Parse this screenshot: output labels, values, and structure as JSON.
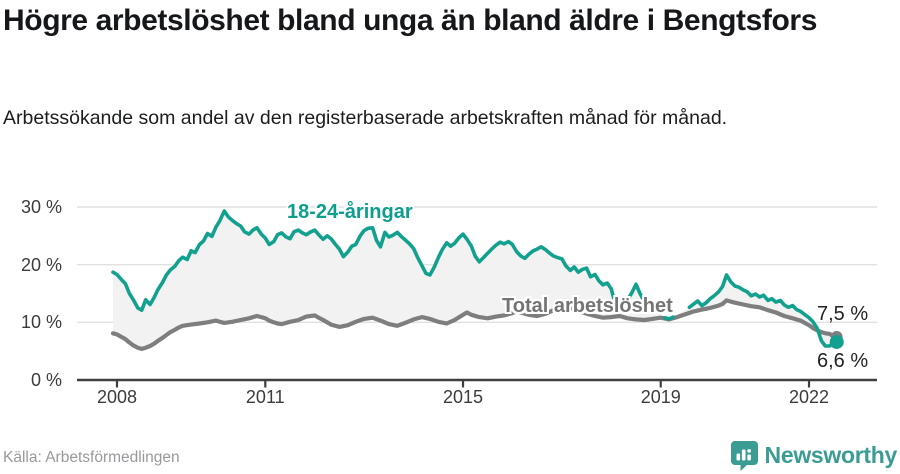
{
  "header": {
    "title": "Högre arbetslöshet bland unga än bland äldre i Bengtsfors",
    "subtitle": "Arbetssökande som andel av den registerbaserade arbetskraften månad för månad."
  },
  "chart_data": {
    "type": "line",
    "title": "Högre arbetslöshet bland unga än bland äldre i Bengtsfors",
    "unit": "%",
    "grid": true,
    "fill_between_color": "#f2f2f2",
    "x_axis": {
      "values": [
        2008,
        2011,
        2015,
        2019,
        2022
      ],
      "labels": [
        "2008",
        "2011",
        "2015",
        "2019",
        "2022"
      ],
      "range": [
        2007.9,
        2022.6
      ]
    },
    "y_axis": {
      "values": [
        30,
        20,
        10,
        0
      ],
      "labels": [
        "30 %",
        "20 %",
        "10 %",
        "0 %"
      ],
      "min": 0,
      "max": 30
    },
    "series": [
      {
        "name": "18-24-åringar",
        "color": "#12a08f",
        "end_label": "6,6 %",
        "end_value": 6.6,
        "points": [
          [
            2007.92,
            18.7
          ],
          [
            2008.0,
            18.3
          ],
          [
            2008.08,
            17.5
          ],
          [
            2008.17,
            16.7
          ],
          [
            2008.25,
            15.0
          ],
          [
            2008.33,
            13.9
          ],
          [
            2008.42,
            12.5
          ],
          [
            2008.5,
            12.1
          ],
          [
            2008.58,
            13.9
          ],
          [
            2008.67,
            13.1
          ],
          [
            2008.75,
            14.3
          ],
          [
            2008.83,
            15.7
          ],
          [
            2008.92,
            16.9
          ],
          [
            2009.0,
            18.2
          ],
          [
            2009.08,
            19.1
          ],
          [
            2009.17,
            19.7
          ],
          [
            2009.25,
            20.7
          ],
          [
            2009.33,
            21.3
          ],
          [
            2009.42,
            20.9
          ],
          [
            2009.5,
            22.4
          ],
          [
            2009.58,
            22.1
          ],
          [
            2009.67,
            23.5
          ],
          [
            2009.75,
            24.1
          ],
          [
            2009.83,
            25.4
          ],
          [
            2009.92,
            24.9
          ],
          [
            2010.0,
            26.5
          ],
          [
            2010.08,
            27.6
          ],
          [
            2010.17,
            29.3
          ],
          [
            2010.25,
            28.3
          ],
          [
            2010.33,
            27.7
          ],
          [
            2010.42,
            27.1
          ],
          [
            2010.5,
            26.7
          ],
          [
            2010.58,
            25.7
          ],
          [
            2010.67,
            25.3
          ],
          [
            2010.75,
            26.0
          ],
          [
            2010.83,
            26.4
          ],
          [
            2010.92,
            25.3
          ],
          [
            2011.0,
            24.6
          ],
          [
            2011.08,
            23.5
          ],
          [
            2011.17,
            24.0
          ],
          [
            2011.25,
            25.2
          ],
          [
            2011.33,
            25.5
          ],
          [
            2011.42,
            24.8
          ],
          [
            2011.5,
            24.5
          ],
          [
            2011.58,
            25.7
          ],
          [
            2011.67,
            26.0
          ],
          [
            2011.75,
            25.5
          ],
          [
            2011.83,
            25.2
          ],
          [
            2011.92,
            25.7
          ],
          [
            2012.0,
            26.0
          ],
          [
            2012.08,
            25.2
          ],
          [
            2012.17,
            24.4
          ],
          [
            2012.25,
            25.0
          ],
          [
            2012.33,
            24.5
          ],
          [
            2012.42,
            23.5
          ],
          [
            2012.5,
            22.7
          ],
          [
            2012.58,
            21.4
          ],
          [
            2012.67,
            22.2
          ],
          [
            2012.75,
            23.2
          ],
          [
            2012.83,
            23.5
          ],
          [
            2012.92,
            25.0
          ],
          [
            2013.0,
            25.9
          ],
          [
            2013.08,
            26.3
          ],
          [
            2013.17,
            26.4
          ],
          [
            2013.25,
            24.2
          ],
          [
            2013.33,
            23.1
          ],
          [
            2013.42,
            25.6
          ],
          [
            2013.5,
            24.8
          ],
          [
            2013.58,
            25.1
          ],
          [
            2013.67,
            25.6
          ],
          [
            2013.75,
            24.9
          ],
          [
            2013.83,
            24.3
          ],
          [
            2013.92,
            23.6
          ],
          [
            2014.0,
            22.8
          ],
          [
            2014.08,
            21.3
          ],
          [
            2014.17,
            19.8
          ],
          [
            2014.25,
            18.5
          ],
          [
            2014.33,
            18.2
          ],
          [
            2014.42,
            19.6
          ],
          [
            2014.5,
            21.2
          ],
          [
            2014.58,
            22.6
          ],
          [
            2014.67,
            23.8
          ],
          [
            2014.75,
            23.2
          ],
          [
            2014.83,
            23.7
          ],
          [
            2014.92,
            24.7
          ],
          [
            2015.0,
            25.3
          ],
          [
            2015.08,
            24.4
          ],
          [
            2015.17,
            23.2
          ],
          [
            2015.25,
            21.4
          ],
          [
            2015.33,
            20.5
          ],
          [
            2015.42,
            21.3
          ],
          [
            2015.5,
            22.0
          ],
          [
            2015.58,
            22.7
          ],
          [
            2015.67,
            23.4
          ],
          [
            2015.75,
            23.9
          ],
          [
            2015.83,
            23.6
          ],
          [
            2015.92,
            24.0
          ],
          [
            2016.0,
            23.5
          ],
          [
            2016.08,
            22.3
          ],
          [
            2016.17,
            21.5
          ],
          [
            2016.25,
            21.1
          ],
          [
            2016.33,
            21.8
          ],
          [
            2016.42,
            22.4
          ],
          [
            2016.5,
            22.7
          ],
          [
            2016.58,
            23.1
          ],
          [
            2016.67,
            22.6
          ],
          [
            2016.75,
            22.0
          ],
          [
            2016.83,
            21.5
          ],
          [
            2016.92,
            21.2
          ],
          [
            2017.0,
            21.0
          ],
          [
            2017.08,
            19.8
          ],
          [
            2017.17,
            19.0
          ],
          [
            2017.25,
            19.6
          ],
          [
            2017.33,
            18.7
          ],
          [
            2017.42,
            19.2
          ],
          [
            2017.5,
            19.4
          ],
          [
            2017.58,
            17.9
          ],
          [
            2017.67,
            18.3
          ],
          [
            2017.75,
            17.2
          ],
          [
            2017.83,
            16.5
          ],
          [
            2017.92,
            16.8
          ],
          [
            2018.0,
            15.8
          ],
          [
            2018.08,
            13.1
          ],
          [
            2018.17,
            null
          ],
          [
            2018.25,
            null
          ],
          [
            2018.33,
            13.9
          ],
          [
            2018.42,
            15.2
          ],
          [
            2018.5,
            16.6
          ],
          [
            2018.58,
            15.0
          ],
          [
            2018.67,
            13.6
          ],
          [
            2018.75,
            null
          ],
          [
            2018.83,
            null
          ],
          [
            2018.92,
            null
          ],
          [
            2019.0,
            null
          ],
          [
            2019.08,
            10.8
          ],
          [
            2019.17,
            10.6
          ],
          [
            2019.25,
            10.9
          ],
          [
            2019.33,
            null
          ],
          [
            2019.42,
            null
          ],
          [
            2019.5,
            null
          ],
          [
            2019.58,
            12.6
          ],
          [
            2019.67,
            13.2
          ],
          [
            2019.75,
            13.7
          ],
          [
            2019.83,
            12.9
          ],
          [
            2019.92,
            13.4
          ],
          [
            2020.0,
            14.1
          ],
          [
            2020.08,
            14.6
          ],
          [
            2020.17,
            15.3
          ],
          [
            2020.25,
            16.2
          ],
          [
            2020.33,
            18.2
          ],
          [
            2020.42,
            17.0
          ],
          [
            2020.5,
            16.3
          ],
          [
            2020.58,
            16.1
          ],
          [
            2020.67,
            15.6
          ],
          [
            2020.75,
            15.3
          ],
          [
            2020.83,
            14.6
          ],
          [
            2020.92,
            14.9
          ],
          [
            2021.0,
            14.4
          ],
          [
            2021.08,
            14.7
          ],
          [
            2021.17,
            13.8
          ],
          [
            2021.25,
            14.1
          ],
          [
            2021.33,
            13.5
          ],
          [
            2021.42,
            13.8
          ],
          [
            2021.5,
            13.0
          ],
          [
            2021.58,
            12.6
          ],
          [
            2021.67,
            12.9
          ],
          [
            2021.75,
            12.2
          ],
          [
            2021.83,
            11.9
          ],
          [
            2021.92,
            11.3
          ],
          [
            2022.0,
            10.8
          ],
          [
            2022.08,
            10.1
          ],
          [
            2022.17,
            8.9
          ],
          [
            2022.25,
            6.8
          ],
          [
            2022.33,
            5.9
          ],
          [
            2022.42,
            5.9
          ],
          [
            2022.5,
            6.6
          ]
        ]
      },
      {
        "name": "Total arbetslöshet",
        "color": "#7e7e7e",
        "end_label": "7,5 %",
        "end_value": 7.5,
        "points": [
          [
            2007.92,
            8.1
          ],
          [
            2008.0,
            7.9
          ],
          [
            2008.08,
            7.5
          ],
          [
            2008.17,
            7.1
          ],
          [
            2008.25,
            6.5
          ],
          [
            2008.33,
            6.0
          ],
          [
            2008.42,
            5.6
          ],
          [
            2008.5,
            5.4
          ],
          [
            2008.58,
            5.6
          ],
          [
            2008.67,
            5.9
          ],
          [
            2008.75,
            6.3
          ],
          [
            2008.83,
            6.8
          ],
          [
            2008.92,
            7.3
          ],
          [
            2009.0,
            7.8
          ],
          [
            2009.08,
            8.3
          ],
          [
            2009.17,
            8.7
          ],
          [
            2009.25,
            9.1
          ],
          [
            2009.33,
            9.4
          ],
          [
            2009.5,
            9.6
          ],
          [
            2009.67,
            9.8
          ],
          [
            2009.83,
            10.0
          ],
          [
            2010.0,
            10.3
          ],
          [
            2010.08,
            10.1
          ],
          [
            2010.17,
            9.9
          ],
          [
            2010.33,
            10.1
          ],
          [
            2010.5,
            10.4
          ],
          [
            2010.67,
            10.7
          ],
          [
            2010.83,
            11.1
          ],
          [
            2010.92,
            10.9
          ],
          [
            2011.0,
            10.7
          ],
          [
            2011.08,
            10.3
          ],
          [
            2011.17,
            10.0
          ],
          [
            2011.25,
            9.8
          ],
          [
            2011.33,
            9.7
          ],
          [
            2011.5,
            10.1
          ],
          [
            2011.67,
            10.4
          ],
          [
            2011.83,
            11.0
          ],
          [
            2011.92,
            11.1
          ],
          [
            2012.0,
            11.2
          ],
          [
            2012.08,
            10.8
          ],
          [
            2012.17,
            10.4
          ],
          [
            2012.33,
            9.6
          ],
          [
            2012.5,
            9.2
          ],
          [
            2012.67,
            9.5
          ],
          [
            2012.83,
            10.1
          ],
          [
            2013.0,
            10.6
          ],
          [
            2013.17,
            10.8
          ],
          [
            2013.33,
            10.3
          ],
          [
            2013.5,
            9.7
          ],
          [
            2013.67,
            9.4
          ],
          [
            2013.83,
            9.9
          ],
          [
            2014.0,
            10.5
          ],
          [
            2014.17,
            10.9
          ],
          [
            2014.33,
            10.6
          ],
          [
            2014.5,
            10.1
          ],
          [
            2014.67,
            9.8
          ],
          [
            2014.83,
            10.4
          ],
          [
            2015.0,
            11.3
          ],
          [
            2015.08,
            11.7
          ],
          [
            2015.17,
            11.3
          ],
          [
            2015.33,
            10.9
          ],
          [
            2015.5,
            10.7
          ],
          [
            2015.67,
            11.0
          ],
          [
            2015.83,
            11.2
          ],
          [
            2016.0,
            11.6
          ],
          [
            2016.08,
            11.9
          ],
          [
            2016.17,
            11.7
          ],
          [
            2016.33,
            11.3
          ],
          [
            2016.5,
            11.1
          ],
          [
            2016.67,
            11.5
          ],
          [
            2016.83,
            12.1
          ],
          [
            2017.0,
            12.8
          ],
          [
            2017.08,
            12.9
          ],
          [
            2017.17,
            12.5
          ],
          [
            2017.33,
            12.0
          ],
          [
            2017.5,
            11.5
          ],
          [
            2017.67,
            11.1
          ],
          [
            2017.83,
            10.8
          ],
          [
            2018.0,
            10.9
          ],
          [
            2018.17,
            11.1
          ],
          [
            2018.33,
            10.7
          ],
          [
            2018.5,
            10.5
          ],
          [
            2018.67,
            10.4
          ],
          [
            2018.83,
            10.6
          ],
          [
            2019.0,
            10.8
          ],
          [
            2019.17,
            10.5
          ],
          [
            2019.33,
            10.9
          ],
          [
            2019.5,
            11.4
          ],
          [
            2019.67,
            11.9
          ],
          [
            2019.83,
            12.2
          ],
          [
            2020.0,
            12.5
          ],
          [
            2020.17,
            12.9
          ],
          [
            2020.25,
            13.2
          ],
          [
            2020.33,
            13.8
          ],
          [
            2020.42,
            13.6
          ],
          [
            2020.5,
            13.4
          ],
          [
            2020.67,
            13.1
          ],
          [
            2020.83,
            12.8
          ],
          [
            2021.0,
            12.6
          ],
          [
            2021.17,
            12.1
          ],
          [
            2021.33,
            11.7
          ],
          [
            2021.5,
            11.1
          ],
          [
            2021.67,
            10.7
          ],
          [
            2021.83,
            10.3
          ],
          [
            2022.0,
            9.5
          ],
          [
            2022.08,
            9.0
          ],
          [
            2022.17,
            8.6
          ],
          [
            2022.25,
            8.3
          ],
          [
            2022.33,
            8.1
          ],
          [
            2022.42,
            8.0
          ],
          [
            2022.5,
            7.5
          ]
        ]
      }
    ]
  },
  "footer": {
    "source": "Källa: Arbetsförmedlingen",
    "brand": "Newsworthy"
  }
}
